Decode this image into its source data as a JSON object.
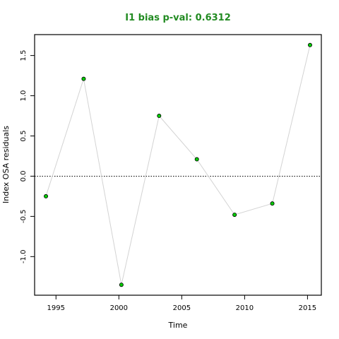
{
  "chart_data": {
    "type": "scatter",
    "title": "I1 bias p-val: 0.6312",
    "xlabel": "Time",
    "ylabel": "Index OSA residuals",
    "xlim": [
      1993.3,
      2016.1
    ],
    "ylim": [
      -1.48,
      1.76
    ],
    "x_ticks": [
      1995,
      2000,
      2005,
      2010,
      2015
    ],
    "y_ticks": [
      -1.0,
      -0.5,
      0.0,
      0.5,
      1.0,
      1.5
    ],
    "x_tick_labels": [
      "1995",
      "2000",
      "2005",
      "2010",
      "2015"
    ],
    "y_tick_labels": [
      "-1.0",
      "-0.5",
      "0.0",
      "0.5",
      "1.0",
      "1.5"
    ],
    "reference_line": 0.0,
    "grid": false,
    "legend": "none",
    "x": [
      1994.2,
      1997.2,
      2000.2,
      2003.2,
      2006.2,
      2009.2,
      2012.2,
      2015.2
    ],
    "y": [
      -0.25,
      1.21,
      -1.35,
      0.75,
      0.21,
      -0.48,
      -0.34,
      1.63
    ],
    "colors": {
      "title": "#228b22",
      "point_fill": "#00cc00",
      "point_stroke": "#000000",
      "line": "#d3d3d3",
      "axes": "#000000"
    }
  }
}
